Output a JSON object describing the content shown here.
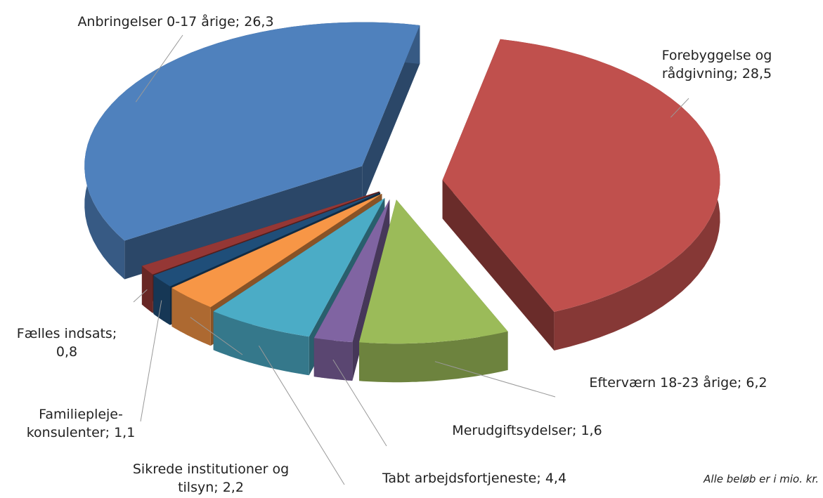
{
  "chart_data": {
    "type": "pie3d",
    "categories": [
      "Forebyggelse og rådgivning",
      "Efterværn 18-23 årige",
      "Merudgiftsydelser",
      "Tabt arbejdsfortjeneste",
      "Sikrede institutioner og tilsyn",
      "Familiepleje-konsulenter",
      "Fælles indsats",
      "Anbringelser 0-17 årige"
    ],
    "values": [
      28.5,
      6.2,
      1.6,
      4.4,
      2.2,
      1.1,
      0.8,
      26.3
    ],
    "value_labels": [
      "28,5",
      "6,2",
      "1,6",
      "4,4",
      "2,2",
      "1,1",
      "0,8",
      "26,3"
    ],
    "label_separator": "; ",
    "colors": [
      "#c0504d",
      "#9bbb59",
      "#8064a2",
      "#4bacc6",
      "#f79646",
      "#1f4e79",
      "#953735",
      "#4f81bd"
    ],
    "note": "Alle beløb er i mio. kr."
  }
}
